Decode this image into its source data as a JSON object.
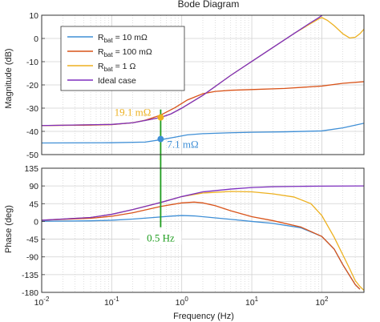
{
  "chart_data": {
    "type": "line",
    "title": "Bode Diagram",
    "xlabel": "Frequency  (Hz)",
    "xscale": "log",
    "xlim": [
      0.01,
      400
    ],
    "x_tick_values": [
      0.01,
      0.1,
      1,
      10,
      100
    ],
    "x_tick_labels": [
      {
        "base": "10",
        "exp": "-2"
      },
      {
        "base": "10",
        "exp": "-1"
      },
      {
        "base": "10",
        "exp": "0"
      },
      {
        "base": "10",
        "exp": "1"
      },
      {
        "base": "10",
        "exp": "2"
      }
    ],
    "grid": true,
    "panels": [
      {
        "name": "magnitude",
        "ylabel": "Magnitude (dB)",
        "ylim": [
          -50,
          10
        ],
        "yticks": [
          -50,
          -40,
          -30,
          -20,
          -10,
          0,
          10
        ]
      },
      {
        "name": "phase",
        "ylabel": "Phase (deg)",
        "ylim": [
          -180,
          135
        ],
        "yticks": [
          -180,
          -135,
          -90,
          -45,
          0,
          45,
          90,
          135
        ]
      }
    ],
    "legend": {
      "placement": "top-left",
      "entries": [
        {
          "base": "R",
          "sub": "bat",
          "rest": " = 10 mΩ",
          "color": "#3f8fd6"
        },
        {
          "base": "R",
          "sub": "bat",
          "rest": " = 100 mΩ",
          "color": "#d95319"
        },
        {
          "base": "R",
          "sub": "bat",
          "rest": " = 1 Ω",
          "color": "#edb120"
        },
        {
          "base": "",
          "sub": "",
          "rest": "Ideal case",
          "color": "#7e2fbf"
        }
      ]
    },
    "series": [
      {
        "color": "#3f8fd6",
        "magnitude": [
          [
            0.01,
            -45
          ],
          [
            0.1,
            -44.9
          ],
          [
            0.3,
            -44.6
          ],
          [
            0.5,
            -43.6
          ],
          [
            0.8,
            -42.5
          ],
          [
            1.2,
            -41.5
          ],
          [
            2,
            -41
          ],
          [
            5,
            -40.6
          ],
          [
            10,
            -40.4
          ],
          [
            30,
            -40.2
          ],
          [
            100,
            -39.8
          ],
          [
            200,
            -38.5
          ],
          [
            400,
            -36.5
          ]
        ],
        "phase": [
          [
            0.01,
            0.3
          ],
          [
            0.05,
            1.5
          ],
          [
            0.1,
            3
          ],
          [
            0.2,
            6
          ],
          [
            0.4,
            10
          ],
          [
            0.7,
            13.5
          ],
          [
            1,
            15
          ],
          [
            1.5,
            14
          ],
          [
            3,
            9
          ],
          [
            6,
            4
          ],
          [
            10,
            0
          ],
          [
            20,
            -5
          ],
          [
            50,
            -16
          ],
          [
            100,
            -38
          ],
          [
            150,
            -70
          ],
          [
            200,
            -110
          ],
          [
            300,
            -160
          ],
          [
            350,
            -172
          ]
        ]
      },
      {
        "color": "#d95319",
        "magnitude": [
          [
            0.01,
            -37.5
          ],
          [
            0.05,
            -37.3
          ],
          [
            0.1,
            -37.1
          ],
          [
            0.2,
            -36.3
          ],
          [
            0.3,
            -35.2
          ],
          [
            0.5,
            -33
          ],
          [
            0.8,
            -29.8
          ],
          [
            1.2,
            -26.5
          ],
          [
            2,
            -23.8
          ],
          [
            3,
            -22.8
          ],
          [
            5,
            -22.3
          ],
          [
            10,
            -22
          ],
          [
            30,
            -21.5
          ],
          [
            100,
            -20.5
          ],
          [
            200,
            -19.3
          ],
          [
            400,
            -18.6
          ]
        ],
        "phase": [
          [
            0.01,
            3
          ],
          [
            0.05,
            8
          ],
          [
            0.1,
            13
          ],
          [
            0.2,
            22
          ],
          [
            0.5,
            38
          ],
          [
            1,
            47
          ],
          [
            1.5,
            49
          ],
          [
            2,
            47
          ],
          [
            3,
            40
          ],
          [
            5,
            27
          ],
          [
            10,
            12
          ],
          [
            20,
            2
          ],
          [
            50,
            -14
          ],
          [
            100,
            -38
          ],
          [
            150,
            -70
          ],
          [
            200,
            -110
          ],
          [
            300,
            -160
          ],
          [
            350,
            -172
          ]
        ]
      },
      {
        "color": "#edb120",
        "magnitude": [
          [
            0.01,
            -37.5
          ],
          [
            0.1,
            -37
          ],
          [
            0.2,
            -36.3
          ],
          [
            0.3,
            -35.3
          ],
          [
            0.5,
            -34
          ],
          [
            0.7,
            -32.5
          ],
          [
            1,
            -30
          ],
          [
            2,
            -24.5
          ],
          [
            5,
            -15.9
          ],
          [
            10,
            -9.9
          ],
          [
            20,
            -3.9
          ],
          [
            40,
            2.1
          ],
          [
            70,
            6.5
          ],
          [
            90,
            8.4
          ],
          [
            100,
            9
          ],
          [
            120,
            7.8
          ],
          [
            150,
            5.5
          ],
          [
            200,
            2
          ],
          [
            250,
            0.2
          ],
          [
            300,
            0.5
          ],
          [
            350,
            2
          ],
          [
            400,
            4
          ]
        ],
        "phase": [
          [
            0.01,
            3
          ],
          [
            0.05,
            10
          ],
          [
            0.1,
            18
          ],
          [
            0.2,
            30
          ],
          [
            0.5,
            48
          ],
          [
            1,
            63
          ],
          [
            2,
            72
          ],
          [
            5,
            76
          ],
          [
            10,
            75
          ],
          [
            20,
            70
          ],
          [
            40,
            62
          ],
          [
            70,
            45
          ],
          [
            100,
            15
          ],
          [
            150,
            -40
          ],
          [
            200,
            -85
          ],
          [
            250,
            -120
          ],
          [
            300,
            -150
          ],
          [
            350,
            -165
          ],
          [
            400,
            -175
          ]
        ]
      },
      {
        "color": "#7e2fbf",
        "magnitude": [
          [
            0.01,
            -37.5
          ],
          [
            0.1,
            -37
          ],
          [
            0.2,
            -36.3
          ],
          [
            0.3,
            -35.3
          ],
          [
            0.5,
            -34
          ],
          [
            0.7,
            -32.5
          ],
          [
            1,
            -30
          ],
          [
            2,
            -24.5
          ],
          [
            5,
            -15.9
          ],
          [
            10,
            -9.9
          ],
          [
            20,
            -3.9
          ],
          [
            40,
            2.1
          ],
          [
            70,
            6.9
          ],
          [
            90,
            8.9
          ],
          [
            100,
            9.9
          ],
          [
            200,
            15.9
          ],
          [
            400,
            21.9
          ]
        ],
        "phase": [
          [
            0.01,
            3
          ],
          [
            0.05,
            10
          ],
          [
            0.1,
            18
          ],
          [
            0.2,
            30
          ],
          [
            0.5,
            48
          ],
          [
            1,
            63
          ],
          [
            2,
            75
          ],
          [
            5,
            82
          ],
          [
            10,
            86
          ],
          [
            20,
            88
          ],
          [
            50,
            89
          ],
          [
            100,
            89.5
          ],
          [
            400,
            90
          ]
        ]
      }
    ],
    "annotations": [
      {
        "text": "19.1 mΩ",
        "panel": "magnitude",
        "x": 0.5,
        "y": -34,
        "color": "#edb120"
      },
      {
        "text": "7.1 mΩ",
        "panel": "magnitude",
        "x": 0.5,
        "y": -43.3,
        "color": "#3f8fd6"
      },
      {
        "text": "0.5 Hz",
        "panel": "phase",
        "x": 0.5,
        "color": "#1f9d1f"
      }
    ],
    "markers": [
      {
        "panel": "magnitude",
        "x": 0.5,
        "y": -34,
        "color": "#edb120"
      },
      {
        "panel": "magnitude",
        "x": 0.5,
        "y": -43.3,
        "color": "#3f8fd6"
      }
    ],
    "vertical_line": {
      "x": 0.5,
      "color": "#1f9d1f"
    }
  }
}
